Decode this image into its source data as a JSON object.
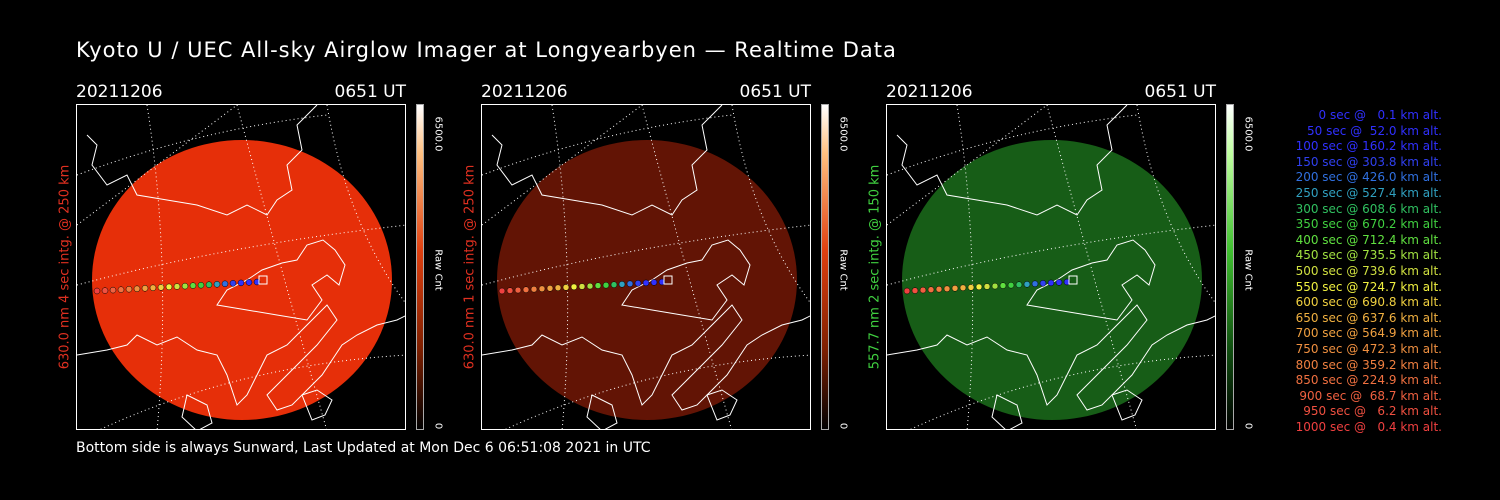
{
  "title": "Kyoto U / UEC All-sky Airglow Imager at Longyearbyen — Realtime Data",
  "footer": "Bottom side is always Sunward, Last Updated at Mon Dec  6 06:51:08 2021 in UTC",
  "panels": [
    {
      "date": "20211206",
      "time": "0651 UT",
      "ylabel": "630.0 nm 4 sec intg. @ 250 km",
      "ylabel_color": "#e03020",
      "cbar_max": "6500.0",
      "cbar_unit": "Raw Cnt",
      "cbar_min": "0",
      "colormap": "red",
      "intensity": 0.55
    },
    {
      "date": "20211206",
      "time": "0651 UT",
      "ylabel": "630.0 nm 1 sec intg. @ 250 km",
      "ylabel_color": "#e03020",
      "cbar_max": "6500.0",
      "cbar_unit": "Raw Cnt",
      "cbar_min": "0",
      "colormap": "red",
      "intensity": 0.18
    },
    {
      "date": "20211206",
      "time": "0651 UT",
      "ylabel": "557.7 nm 2 sec intg. @ 150 km",
      "ylabel_color": "#40d040",
      "cbar_max": "6500.0",
      "cbar_unit": "Raw Cnt",
      "cbar_min": "0",
      "colormap": "green",
      "intensity": 0.22
    }
  ],
  "legend": [
    {
      "text": "0 sec @   0.1 km alt.",
      "color": "#3030ff"
    },
    {
      "text": "50 sec @  52.0 km alt.",
      "color": "#3030ff"
    },
    {
      "text": "100 sec @ 160.2 km alt.",
      "color": "#3030ff"
    },
    {
      "text": "150 sec @ 303.8 km alt.",
      "color": "#3040f0"
    },
    {
      "text": "200 sec @ 426.0 km alt.",
      "color": "#3070e0"
    },
    {
      "text": "250 sec @ 527.4 km alt.",
      "color": "#30a0c0"
    },
    {
      "text": "300 sec @ 608.6 km alt.",
      "color": "#30c060"
    },
    {
      "text": "350 sec @ 670.2 km alt.",
      "color": "#40d040"
    },
    {
      "text": "400 sec @ 712.4 km alt.",
      "color": "#60e040"
    },
    {
      "text": "450 sec @ 735.5 km alt.",
      "color": "#a0e040"
    },
    {
      "text": "500 sec @ 739.6 km alt.",
      "color": "#d0e040"
    },
    {
      "text": "550 sec @ 724.7 km alt.",
      "color": "#f0f040"
    },
    {
      "text": "600 sec @ 690.8 km alt.",
      "color": "#f0d040"
    },
    {
      "text": "650 sec @ 637.6 km alt.",
      "color": "#f0b040"
    },
    {
      "text": "700 sec @ 564.9 km alt.",
      "color": "#f0a040"
    },
    {
      "text": "750 sec @ 472.3 km alt.",
      "color": "#f09040"
    },
    {
      "text": "800 sec @ 359.2 km alt.",
      "color": "#f08040"
    },
    {
      "text": "850 sec @ 224.9 km alt.",
      "color": "#f07040"
    },
    {
      "text": "900 sec @  68.7 km alt.",
      "color": "#f06040"
    },
    {
      "text": "950 sec @   6.2 km alt.",
      "color": "#f05040"
    },
    {
      "text": "1000 sec @   0.4 km alt.",
      "color": "#f04040"
    }
  ]
}
